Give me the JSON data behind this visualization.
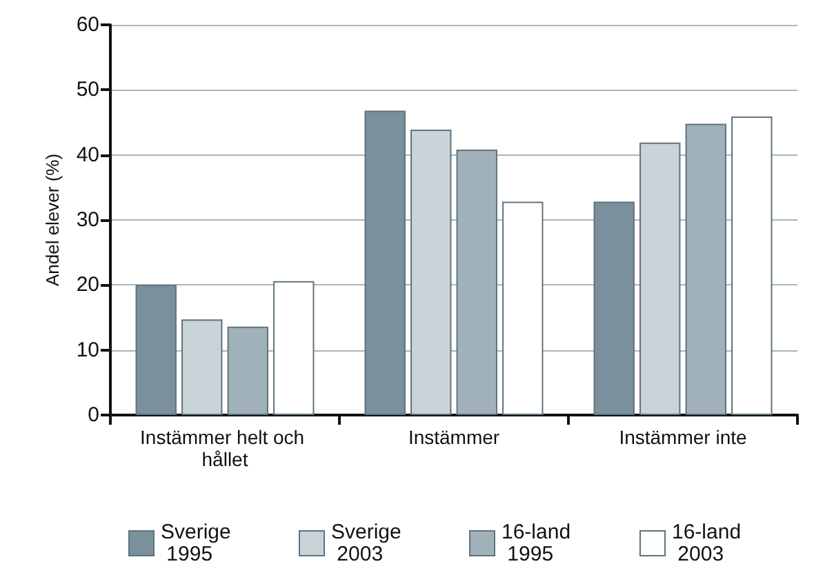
{
  "chart_data": {
    "type": "bar",
    "ylabel": "Andel elever (%)",
    "categories": [
      "Instämmer helt och hållet",
      "Instämmer",
      "Instämmer inte"
    ],
    "series": [
      {
        "name": "Sverige 1995",
        "color": "#7a909c",
        "values": [
          20,
          46.8,
          32.8
        ]
      },
      {
        "name": "Sverige 2003",
        "color": "#c9d3d8",
        "values": [
          14.7,
          43.9,
          41.9
        ]
      },
      {
        "name": "16-land 1995",
        "color": "#a0b1ba",
        "values": [
          13.6,
          40.8,
          44.8
        ]
      },
      {
        "name": "16-land 2003",
        "color": "#ffffff",
        "values": [
          20.6,
          32.8,
          45.9
        ]
      }
    ],
    "ylim": [
      0,
      60
    ],
    "yticks": [
      0,
      10,
      20,
      30,
      40,
      50,
      60
    ],
    "grid": "y",
    "legend": "bottom"
  }
}
